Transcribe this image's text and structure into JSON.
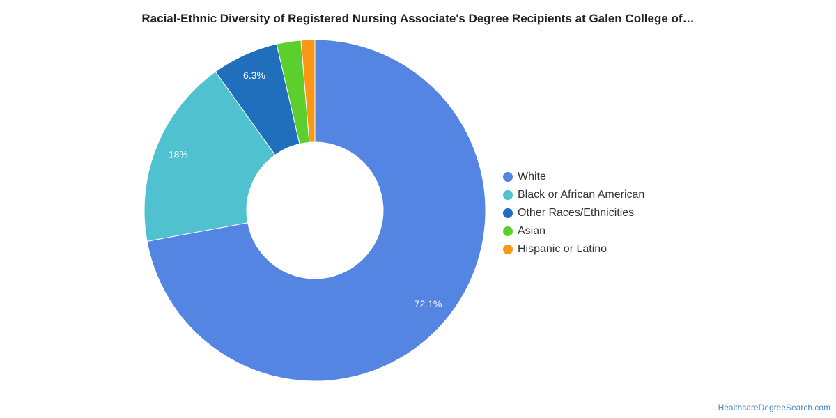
{
  "chart_data": {
    "type": "pie",
    "title": "Racial-Ethnic Diversity of Registered Nursing Associate's Degree Recipients at Galen College of…",
    "donut": true,
    "legend_position": "right",
    "categories": [
      "White",
      "Black or African American",
      "Other Races/Ethnicities",
      "Asian",
      "Hispanic or Latino"
    ],
    "values": [
      72.1,
      18,
      6.3,
      2.3,
      1.3
    ],
    "data_labels": [
      "72.1%",
      "18%",
      "6.3%",
      "",
      ""
    ],
    "colors": [
      "#5485e3",
      "#50c1ce",
      "#1f6fbd",
      "#5ccf2c",
      "#fb9716"
    ]
  },
  "source": "HealthcareDegreeSearch.com"
}
